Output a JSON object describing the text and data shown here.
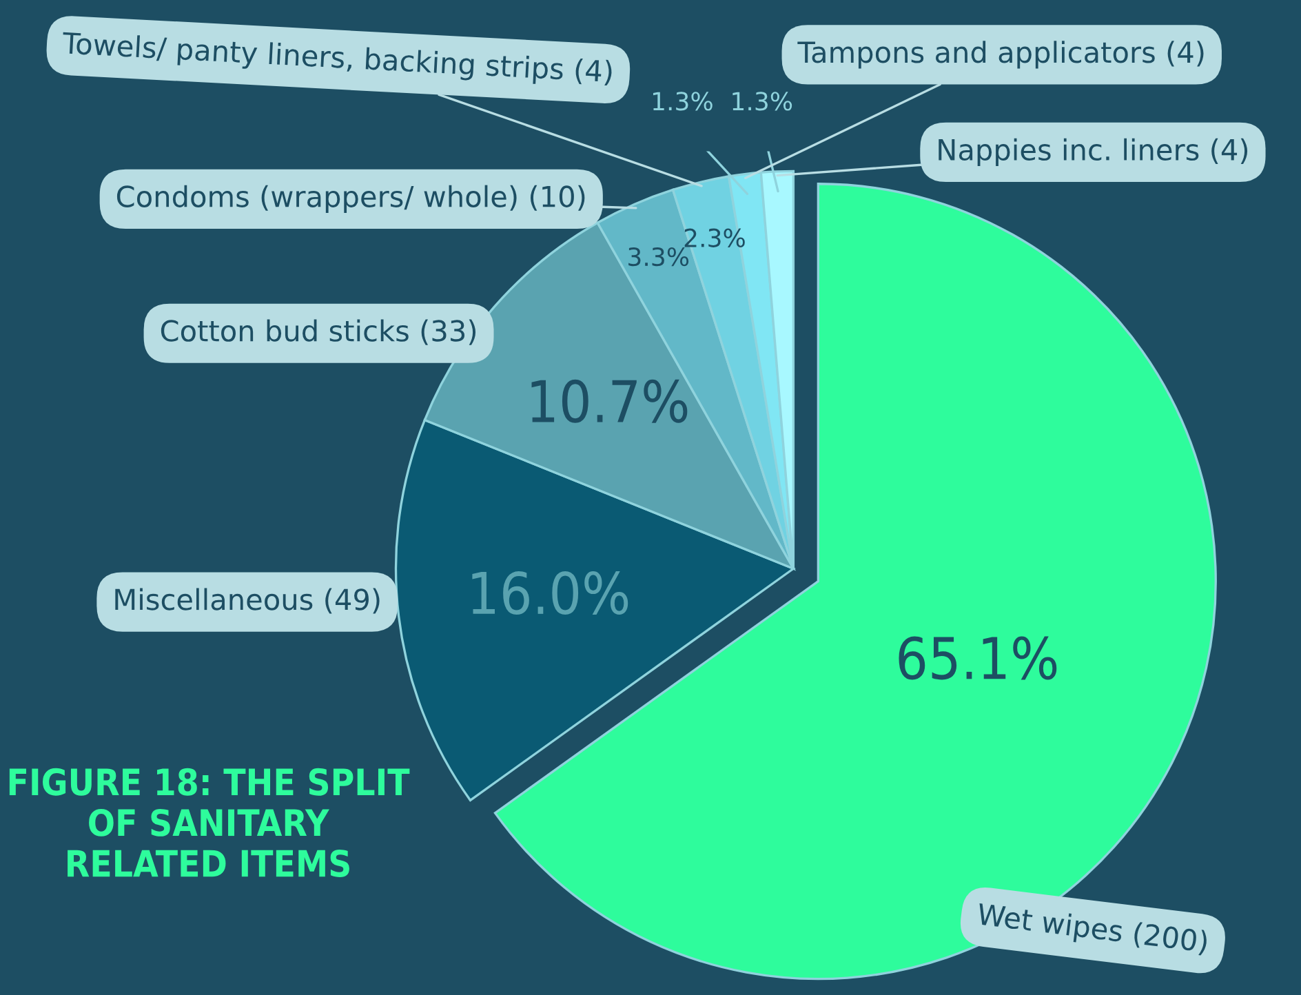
{
  "chart_data": {
    "type": "pie",
    "title": "FIGURE 18: THE SPLIT OF SANITARY RELATED ITEMS",
    "categories": [
      "Wet wipes (200)",
      "Miscellaneous (49)",
      "Cotton bud sticks (33)",
      "Condoms (wrappers/ whole) (10)",
      "Towels/ panty liners, backing strips (4)",
      "Tampons and applicators (4)",
      "Nappies inc. liners (4)"
    ],
    "values": [
      65.1,
      16.0,
      10.7,
      3.3,
      2.3,
      1.3,
      1.3
    ],
    "colors": [
      "#2efc9c",
      "#0a5a73",
      "#5aa3b0",
      "#62b8c8",
      "#70d2e2",
      "#80e6f4",
      "#a8f8ff"
    ],
    "value_labels": [
      "65.1%",
      "16.0%",
      "10.7%",
      "3.3%",
      "2.3%",
      "1.3%",
      "1.3%"
    ]
  }
}
